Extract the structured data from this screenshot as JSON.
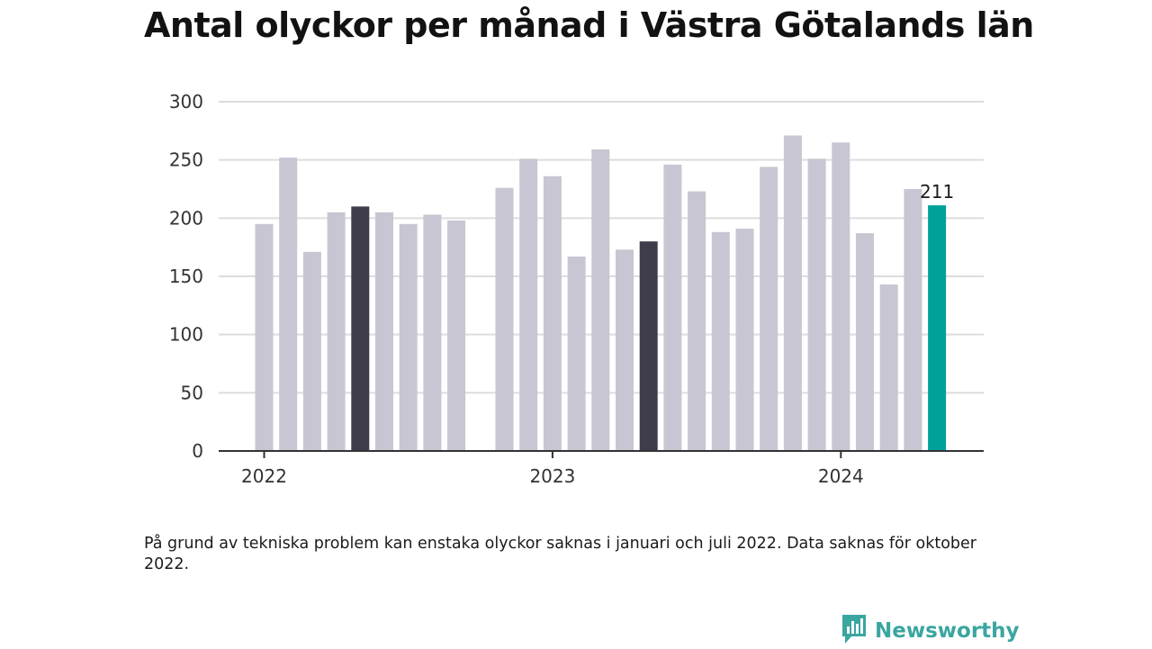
{
  "title": "Antal olyckor per månad i Västra Götalands län",
  "note": "På grund av tekniska problem kan enstaka olyckor saknas i januari och juli 2022. Data saknas för oktober 2022.",
  "brand": {
    "name": "Newsworthy",
    "icon": "newsworthy-logo-icon",
    "color": "#3aa6a0"
  },
  "colors": {
    "bar": "#c7c6d2",
    "highlight": "#3f3c4b",
    "current": "#00a19a",
    "grid": "#dddddd",
    "axis": "#333333"
  },
  "chart_data": {
    "type": "bar",
    "title": "Antal olyckor per månad i Västra Götalands län",
    "xlabel": "",
    "ylabel": "",
    "ylim": [
      0,
      300
    ],
    "yticks": [
      0,
      50,
      100,
      150,
      200,
      250,
      300
    ],
    "grid": true,
    "categories": [
      "2022-01",
      "2022-02",
      "2022-03",
      "2022-04",
      "2022-05",
      "2022-06",
      "2022-07",
      "2022-08",
      "2022-09",
      "2022-10",
      "2022-11",
      "2022-12",
      "2023-01",
      "2023-02",
      "2023-03",
      "2023-04",
      "2023-05",
      "2023-06",
      "2023-07",
      "2023-08",
      "2023-09",
      "2023-10",
      "2023-11",
      "2023-12",
      "2024-01",
      "2024-02",
      "2024-03",
      "2024-04",
      "2024-05",
      "2024-06"
    ],
    "values": [
      195,
      252,
      171,
      205,
      210,
      205,
      195,
      203,
      198,
      null,
      226,
      251,
      236,
      167,
      259,
      173,
      180,
      246,
      223,
      188,
      191,
      244,
      271,
      251,
      265,
      187,
      143,
      225,
      211,
      null
    ],
    "highlight_indices": [
      4,
      16
    ],
    "current_index": 28,
    "x_tick_labels": [
      {
        "label": "2022",
        "index": 0
      },
      {
        "label": "2023",
        "index": 12
      },
      {
        "label": "2024",
        "index": 24
      }
    ],
    "annotations": [
      {
        "index": 28,
        "text": "211"
      }
    ]
  }
}
